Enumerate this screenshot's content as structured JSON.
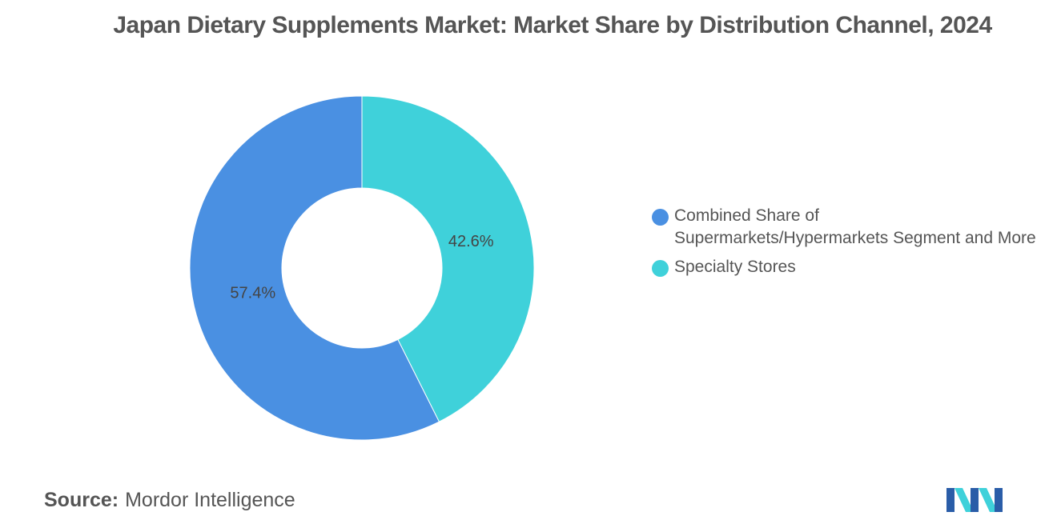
{
  "chart_data": {
    "type": "pie",
    "variant": "donut",
    "title": "Japan Dietary Supplements Market: Market Share by Distribution Channel, 2024",
    "slices": [
      {
        "label": "Specialty Stores",
        "value": 42.6,
        "display": "42.6%",
        "color": "#3FD1DA"
      },
      {
        "label": "Combined Share of Supermarkets/Hypermarkets Segment and More",
        "value": 57.4,
        "display": "57.4%",
        "color": "#4A90E2"
      }
    ],
    "legend_position": "right"
  },
  "legend": [
    {
      "label": "Combined Share of Supermarkets/Hypermarkets Segment and More",
      "color": "#4A90E2"
    },
    {
      "label": "Specialty Stores",
      "color": "#3FD1DA"
    }
  ],
  "source": {
    "label": "Source:",
    "text": "Mordor Intelligence"
  },
  "logo": {
    "icon": "mordor-intelligence-logo-icon",
    "colors": [
      "#1F4E8C",
      "#3FD1DA"
    ]
  }
}
